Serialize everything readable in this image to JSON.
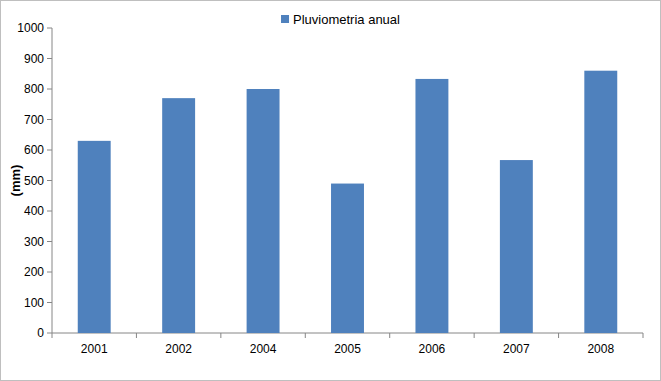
{
  "chart_data": {
    "type": "bar",
    "y_label": "(mm)",
    "categories": [
      "2001",
      "2002",
      "2004",
      "2005",
      "2006",
      "2007",
      "2008"
    ],
    "series": [
      {
        "name": "Pluviometria anual",
        "color": "#4f81bd",
        "values": [
          630,
          770,
          800,
          490,
          833,
          567,
          860
        ]
      }
    ],
    "ylim": [
      0,
      1000
    ],
    "yticks": [
      0,
      100,
      200,
      300,
      400,
      500,
      600,
      700,
      800,
      900,
      1000
    ],
    "grid": false,
    "legend": "top"
  }
}
